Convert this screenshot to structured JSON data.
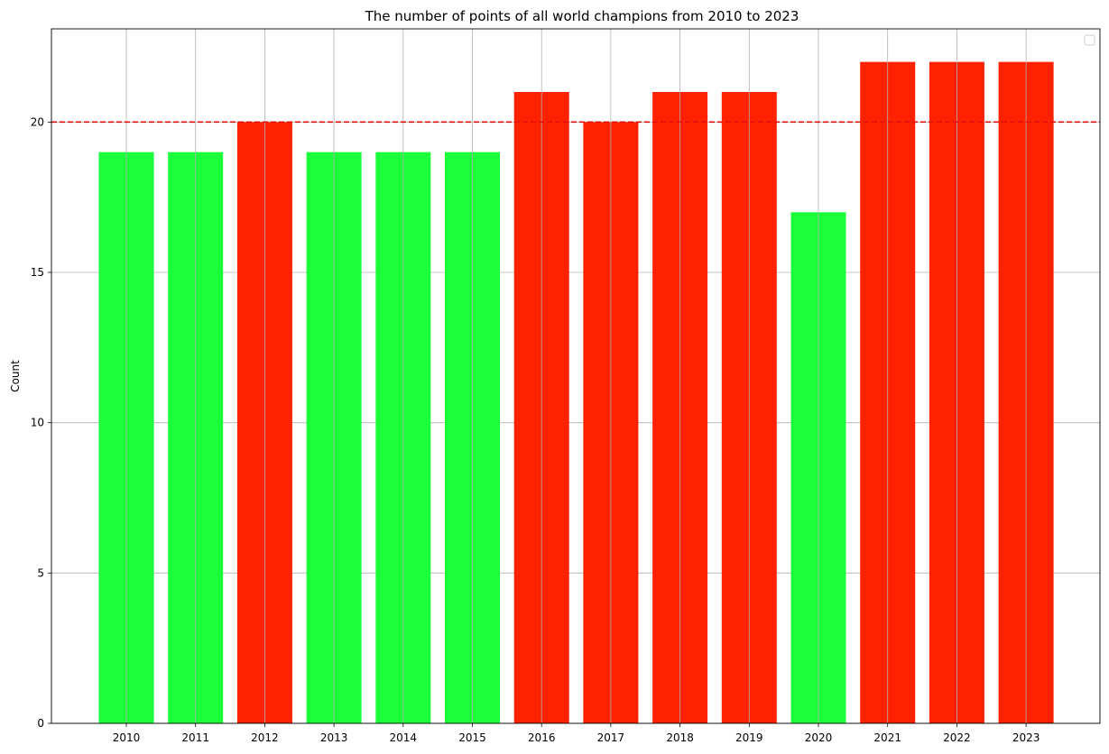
{
  "chart_data": {
    "type": "bar",
    "title": "The number of points of all world champions from 2010 to 2023",
    "xlabel": "",
    "ylabel": "Count",
    "categories": [
      "2010",
      "2011",
      "2012",
      "2013",
      "2014",
      "2015",
      "2016",
      "2017",
      "2018",
      "2019",
      "2020",
      "2021",
      "2022",
      "2023"
    ],
    "values": [
      19,
      19,
      20,
      19,
      19,
      19,
      21,
      20,
      21,
      21,
      17,
      22,
      22,
      22
    ],
    "bar_colors": [
      "#1aff3a",
      "#1aff3a",
      "#ff2200",
      "#1aff3a",
      "#1aff3a",
      "#1aff3a",
      "#ff2200",
      "#ff2200",
      "#ff2200",
      "#ff2200",
      "#1aff3a",
      "#ff2200",
      "#ff2200",
      "#ff2200"
    ],
    "ylim": [
      0,
      23.1
    ],
    "yticks": [
      0,
      5,
      10,
      15,
      20
    ],
    "reference_line": {
      "value": 20,
      "color": "#e01010",
      "style": "dashed"
    },
    "grid": true,
    "legend": {
      "position": "top-right",
      "entries": []
    }
  }
}
